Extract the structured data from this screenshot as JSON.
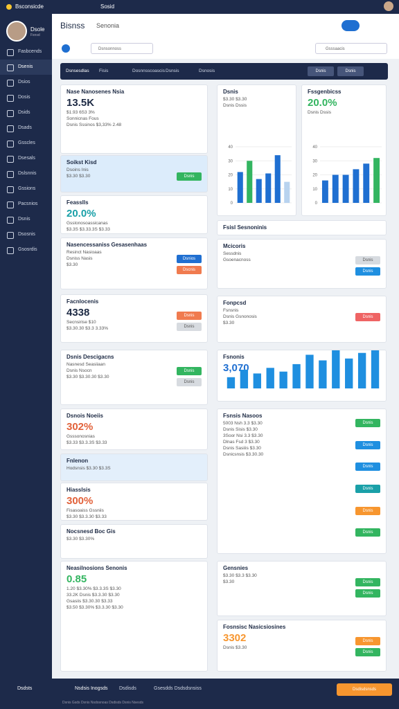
{
  "topbar": {
    "brand": "Bsconsicde",
    "search": "Sosid"
  },
  "sidebar": {
    "user": "Dsole",
    "role": "Fsnsd",
    "nav": [
      "Fasbcends",
      "Dsenis",
      "Dsios",
      "Dosis",
      "Dsids",
      "Dsads",
      "Gsscles",
      "Dsesals",
      "Dslsnnis",
      "Gssions",
      "Pacsnios",
      "Dsnis",
      "Dsosnis",
      "Gsosrdis"
    ],
    "active": 1,
    "bottom": "Dsdsts"
  },
  "header": {
    "title": "Bisnss",
    "search": "Senonia",
    "filter": "Dsnsonnoss",
    "search2": "Gsssaacis"
  },
  "tabs": [
    "Dsnsesdlas",
    "Fisis",
    "Dosnnsscoascis",
    "Dsnsis",
    "Dsnosis"
  ],
  "tab_buttons": [
    "Dsnis",
    "Dsnis"
  ],
  "left_cards": [
    {
      "title": "Nase Nanosenes Nsia",
      "headline": "13.5K",
      "headline_color": "#1d2a44",
      "lines": [
        "$1.93  6S3 3%",
        "Sonnicnas Fous",
        "Dsnis Sssinos  $3,33%  2.48"
      ]
    },
    {
      "title": "Soikst Kisd",
      "lines": [
        "Dsoins Inis",
        "$3.30  $3.30"
      ],
      "buttons": [
        {
          "label": "Dsnis",
          "color": "#33b560"
        }
      ]
    },
    {
      "title": "Feasslls",
      "headline": "20.0%",
      "headline_color": "#1aa0a8",
      "lines": [
        "Gsslonosoassicanas",
        "$3.3S   $3.33.3S  $3.33"
      ]
    },
    {
      "title": "Nasencessaniss Gesasenhaas",
      "lines": [
        "Resinct Nasioaas",
        "Dsniss Nasis",
        "$3.30"
      ],
      "buttons": [
        {
          "label": "Dsnios",
          "color": "#1f6fd1"
        },
        {
          "label": "Dscnis",
          "color": "#f07b4f"
        }
      ]
    },
    {
      "title": "Facnlocenis",
      "headline": "4338",
      "headline_color": "#1d2a44",
      "lines": [
        "Secnsirise $10",
        "$3.30.30  $3.3  3.33%"
      ],
      "buttons": [
        {
          "label": "Dsnis",
          "color": "#f07b4f"
        },
        {
          "label": "Dsnis",
          "color": "#d7dbe0"
        }
      ]
    },
    {
      "title": "Dsnis Descigacns",
      "lines": [
        "Nasnesd Seasiiaan",
        "Dsnis Nsocn",
        "$3.30   $3.30.30  $3.30"
      ],
      "buttons": [
        {
          "label": "Dsnis",
          "color": "#33b560"
        },
        {
          "label": "Dsnis",
          "color": "#d7dbe0"
        }
      ]
    },
    {
      "title": "Dsnois Noeiis",
      "headline": "302%",
      "headline_color": "#e2623b",
      "lines": [
        "Gsssonosnias",
        "$3.33   $3.3.3S  $3.33"
      ]
    },
    {
      "title": "Fnlenon",
      "lines": [
        "Hodsnsis  $3.30  $3.3S"
      ]
    },
    {
      "title": "Hiasslsis",
      "headline": "300%",
      "headline_color": "#e2623b",
      "lines": [
        "Fisasoaiss Gssniis",
        "$3.30   $3.3.30  $3.33"
      ]
    },
    {
      "title": "Nocsnesd Boc Gis",
      "lines": [
        "$3.30  $3.30%"
      ]
    },
    {
      "title": "Neasilnosions Senonis",
      "headline": "0.85",
      "headline_color": "#33b560",
      "lines": [
        "1.20   $3.30%  $3.3.3S  $3.30",
        "33.2K  Dsnis  $3.3.30  $3.30",
        "Gsasiis  $3.30.30  $3.33",
        "$3.50  $3.30%  $3.3.30  $3.30"
      ]
    }
  ],
  "right_cards": [
    {
      "title": "Dsnis",
      "lines": [
        "$3.30  $3.30",
        "Dsnis Dssis"
      ],
      "bars": [
        22,
        30,
        17,
        21,
        34,
        15
      ],
      "bar_colors": [
        "#1f6fd1",
        "#33b560",
        "#1f6fd1",
        "#1f6fd1",
        "#1f6fd1",
        "#b8d3ef"
      ],
      "ylim": [
        0,
        40
      ],
      "yticks": [
        0,
        10,
        20,
        30,
        40
      ]
    },
    {
      "title": "Fssgenbicss",
      "headline": "20.0%",
      "headline_color": "#33b560",
      "lines": [
        "Dsnis Dssis"
      ],
      "bars": [
        16,
        20,
        20,
        24,
        28,
        32
      ],
      "bar_colors": [
        "#1f6fd1",
        "#1f6fd1",
        "#1f6fd1",
        "#1f6fd1",
        "#1f6fd1",
        "#33b560"
      ],
      "ylim": [
        0,
        40
      ],
      "yticks": [
        0,
        10,
        20,
        30,
        40
      ]
    },
    {
      "title": "Fsisl Sesnoninis",
      "lines": []
    },
    {
      "title": "Mcicoris",
      "lines": [
        "Sessdnis",
        "Gsoenacnoss"
      ],
      "buttons": [
        {
          "label": "Dsnis",
          "color": "#d7dbe0"
        },
        {
          "label": "Dsnis",
          "color": "#1f8fe0"
        }
      ]
    },
    {
      "title": "Fonpcsd",
      "lines": [
        "Fsnsnis",
        "Dsnis Gsnonosis",
        "$3.30"
      ],
      "buttons": [
        {
          "label": "Dsnis",
          "color": "#ef6464"
        }
      ]
    },
    {
      "title": "Fsnonis",
      "headline": "3,070",
      "headline_color": "#1f6fd1",
      "lines": [],
      "bars": [
        6,
        10,
        8,
        11,
        9,
        13,
        18,
        15,
        22,
        16,
        19,
        26
      ],
      "bar_colors": [
        "#1f8fe0"
      ],
      "ylim": [
        0,
        30
      ],
      "yticks": []
    },
    {
      "title": "Fsnsis Nasoos",
      "lines": [
        "5003  Nsh 3.3  $3.30",
        "Dsnis  Sisis  $3.30",
        "3Soor  Nsi 3.3  $3.30",
        "Dlnas  Fsd 3  $3.30",
        "Dsnis Sasiiis  $3.30",
        "Dsnicsnsis  $3.30.30"
      ],
      "buttons": [
        {
          "label": "Dsnis",
          "color": "#33b560"
        },
        {
          "label": "Dsnis",
          "color": "#1f8fe0"
        },
        {
          "label": "Dsnis",
          "color": "#1f8fe0"
        },
        {
          "label": "Dsnis",
          "color": "#1aa0a8"
        },
        {
          "label": "Dsnis",
          "color": "#f7962f"
        },
        {
          "label": "Dsnis",
          "color": "#33b560"
        }
      ]
    },
    {
      "title": "Gensnies",
      "lines": [
        "$3.30  $3.3  $3.30",
        "$3.30"
      ],
      "buttons": [
        {
          "label": "Dsnis",
          "color": "#33b560"
        },
        {
          "label": "Dsnis",
          "color": "#33b560"
        }
      ]
    },
    {
      "title": "Fosnsisc Nasicsiosines",
      "headline": "3302",
      "headline_color": "#f7962f",
      "lines": [
        "Dsnis  $3.30"
      ],
      "buttons": [
        {
          "label": "Dsnis",
          "color": "#f7962f"
        },
        {
          "label": "Dsnis",
          "color": "#33b560"
        }
      ]
    }
  ],
  "footer": {
    "brand": "Nsdsis Inogsds",
    "links": [
      "Dsdisds",
      "Gsesdds Dsdsdsnsiss"
    ],
    "note": "Dsnis Gsds Dsnis Nsdosnoas Dsdisds Dsnis Nsesds",
    "button": "Dsdisdsnsds"
  }
}
